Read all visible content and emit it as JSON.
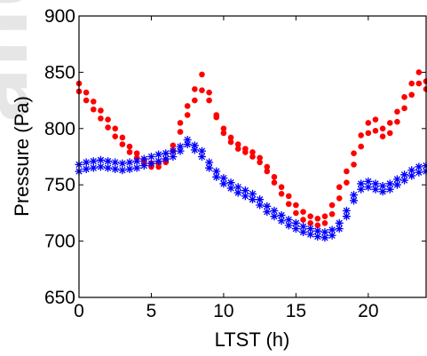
{
  "chart_data": {
    "type": "scatter",
    "xlabel": "LTST (h)",
    "ylabel": "Pressure (Pa)",
    "xlim": [
      0,
      24
    ],
    "ylim": [
      650,
      900
    ],
    "xticks": [
      "0",
      "5",
      "10",
      "15",
      "20"
    ],
    "yticks": [
      "650",
      "700",
      "750",
      "800",
      "850",
      "900"
    ],
    "grid": false,
    "watermark": "anusc",
    "colors": {
      "red": "#ff0000",
      "blue": "#0000ff",
      "axis": "#000000"
    },
    "series": [
      {
        "color": "#ff0000",
        "marker": "dot",
        "x": [
          0,
          0.5,
          1,
          1.5,
          2,
          2.5,
          3,
          3.5,
          4,
          4.5,
          5,
          5.5,
          6,
          6.5,
          7,
          7.5,
          8,
          8.5,
          9,
          9.5,
          10,
          10.5,
          11,
          11.5,
          12,
          12.5,
          13,
          13.5,
          14,
          14.5,
          15,
          15.5,
          16,
          16.5,
          17,
          17.5,
          18,
          18.5,
          19,
          19.5,
          20,
          20.5,
          21,
          21.5,
          22,
          22.5,
          23,
          23.5,
          24
        ],
        "y": [
          840,
          832,
          824,
          816,
          808,
          800,
          792,
          784,
          778,
          772,
          769,
          769,
          772,
          785,
          805,
          820,
          835,
          848,
          832,
          812,
          800,
          792,
          786,
          782,
          779,
          774,
          766,
          757,
          748,
          740,
          732,
          726,
          722,
          720,
          722,
          732,
          748,
          762,
          778,
          794,
          805,
          808,
          800,
          805,
          815,
          828,
          840,
          850,
          842
        ]
      },
      {
        "color": "#ff0000",
        "marker": "dot",
        "x": [
          0,
          0.5,
          1,
          1.5,
          2,
          2.5,
          3,
          3.5,
          4,
          4.5,
          5,
          5.5,
          6,
          6.5,
          7,
          7.5,
          8,
          8.5,
          9,
          9.5,
          10,
          10.5,
          11,
          11.5,
          12,
          12.5,
          13,
          13.5,
          14,
          14.5,
          15,
          15.5,
          16,
          16.5,
          17,
          17.5,
          18,
          18.5,
          19,
          19.5,
          20,
          20.5,
          21,
          21.5,
          22,
          22.5,
          23,
          23.5,
          24
        ],
        "y": [
          833,
          825,
          817,
          809,
          801,
          793,
          786,
          779,
          774,
          769,
          766,
          766,
          770,
          780,
          797,
          812,
          825,
          834,
          825,
          810,
          796,
          788,
          782,
          779,
          775,
          770,
          762,
          752,
          742,
          733,
          725,
          719,
          716,
          714,
          716,
          724,
          738,
          752,
          768,
          784,
          796,
          798,
          793,
          796,
          806,
          818,
          830,
          840,
          835
        ]
      },
      {
        "color": "#0000ff",
        "marker": "star",
        "x": [
          0,
          0.5,
          1,
          1.5,
          2,
          2.5,
          3,
          3.5,
          4,
          4.5,
          5,
          5.5,
          6,
          6.5,
          7,
          7.5,
          8,
          8.5,
          9,
          9.5,
          10,
          10.5,
          11,
          11.5,
          12,
          12.5,
          13,
          13.5,
          14,
          14.5,
          15,
          15.5,
          16,
          16.5,
          17,
          17.5,
          18,
          18.5,
          19,
          19.5,
          20,
          20.5,
          21,
          21.5,
          22,
          22.5,
          23,
          23.5,
          24
        ],
        "y": [
          768,
          770,
          771,
          772,
          771,
          770,
          769,
          770,
          771,
          773,
          775,
          777,
          778,
          780,
          784,
          790,
          785,
          780,
          770,
          762,
          756,
          752,
          748,
          745,
          742,
          737,
          731,
          727,
          723,
          719,
          716,
          713,
          711,
          709,
          708,
          710,
          716,
          727,
          741,
          751,
          753,
          751,
          749,
          751,
          755,
          759,
          763,
          766,
          767
        ]
      },
      {
        "color": "#0000ff",
        "marker": "star",
        "x": [
          0,
          0.5,
          1,
          1.5,
          2,
          2.5,
          3,
          3.5,
          4,
          4.5,
          5,
          5.5,
          6,
          6.5,
          7,
          7.5,
          8,
          8.5,
          9,
          9.5,
          10,
          10.5,
          11,
          11.5,
          12,
          12.5,
          13,
          13.5,
          14,
          14.5,
          15,
          15.5,
          16,
          16.5,
          17,
          17.5,
          18,
          18.5,
          19,
          19.5,
          20,
          20.5,
          21,
          21.5,
          22,
          22.5,
          23,
          23.5,
          24
        ],
        "y": [
          762,
          764,
          765,
          766,
          765,
          764,
          763,
          764,
          765,
          767,
          769,
          771,
          773,
          775,
          780,
          786,
          781,
          775,
          765,
          757,
          751,
          747,
          743,
          740,
          737,
          732,
          726,
          722,
          718,
          714,
          711,
          708,
          706,
          704,
          703,
          705,
          711,
          722,
          736,
          746,
          748,
          746,
          744,
          746,
          750,
          754,
          758,
          761,
          762
        ]
      }
    ]
  }
}
